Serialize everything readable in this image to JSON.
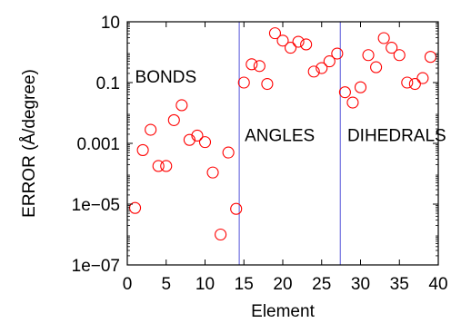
{
  "chart_data": {
    "type": "scatter",
    "xlabel": "Element",
    "ylabel": "ERROR (Å/degree)",
    "x_range": [
      0,
      40
    ],
    "y_range": [
      1e-07,
      10
    ],
    "y_scale": "log",
    "x_ticks": [
      0,
      5,
      10,
      15,
      20,
      25,
      30,
      35,
      40
    ],
    "x_tick_labels": [
      "0",
      "5",
      "10",
      "15",
      "20",
      "25",
      "30",
      "35",
      "40"
    ],
    "y_ticks": [
      1e-07,
      1e-05,
      0.001,
      0.1,
      10
    ],
    "y_tick_labels": [
      "1e−07",
      "1e−05",
      "0.001",
      "0.1",
      "10"
    ],
    "marker": "open-circle",
    "marker_color": "#ff0000",
    "divider_color": "#7070e0",
    "dividers": [
      14.4,
      27.4
    ],
    "annotations": [
      {
        "text": "BONDS",
        "x": 1.0,
        "y": 0.1
      },
      {
        "text": "ANGLES",
        "x": 15.1,
        "y": 0.0012
      },
      {
        "text": "DIHEDRALS",
        "x": 28.3,
        "y": 0.0012
      }
    ],
    "points": [
      {
        "x": 1,
        "y": 7.5e-06
      },
      {
        "x": 2,
        "y": 0.0006
      },
      {
        "x": 3,
        "y": 0.0028
      },
      {
        "x": 4,
        "y": 0.00018
      },
      {
        "x": 5,
        "y": 0.00018
      },
      {
        "x": 6,
        "y": 0.0058
      },
      {
        "x": 7,
        "y": 0.018
      },
      {
        "x": 8,
        "y": 0.0013
      },
      {
        "x": 9,
        "y": 0.0018
      },
      {
        "x": 10,
        "y": 0.0011
      },
      {
        "x": 11,
        "y": 0.00011
      },
      {
        "x": 12,
        "y": 1e-06
      },
      {
        "x": 13,
        "y": 0.0005
      },
      {
        "x": 14,
        "y": 7e-06
      },
      {
        "x": 15,
        "y": 0.1
      },
      {
        "x": 16,
        "y": 0.4
      },
      {
        "x": 17,
        "y": 0.35
      },
      {
        "x": 18,
        "y": 0.09
      },
      {
        "x": 19,
        "y": 4.2
      },
      {
        "x": 20,
        "y": 2.4
      },
      {
        "x": 21,
        "y": 1.4
      },
      {
        "x": 22,
        "y": 2.2
      },
      {
        "x": 23,
        "y": 1.8
      },
      {
        "x": 24,
        "y": 0.23
      },
      {
        "x": 25,
        "y": 0.3
      },
      {
        "x": 26,
        "y": 0.5
      },
      {
        "x": 27,
        "y": 0.9
      },
      {
        "x": 28,
        "y": 0.048
      },
      {
        "x": 29,
        "y": 0.022
      },
      {
        "x": 30,
        "y": 0.07
      },
      {
        "x": 31,
        "y": 0.8
      },
      {
        "x": 32,
        "y": 0.32
      },
      {
        "x": 33,
        "y": 2.9
      },
      {
        "x": 34,
        "y": 1.4
      },
      {
        "x": 35,
        "y": 0.8
      },
      {
        "x": 36,
        "y": 0.1
      },
      {
        "x": 37,
        "y": 0.09
      },
      {
        "x": 38,
        "y": 0.14
      },
      {
        "x": 39,
        "y": 0.7
      }
    ]
  }
}
